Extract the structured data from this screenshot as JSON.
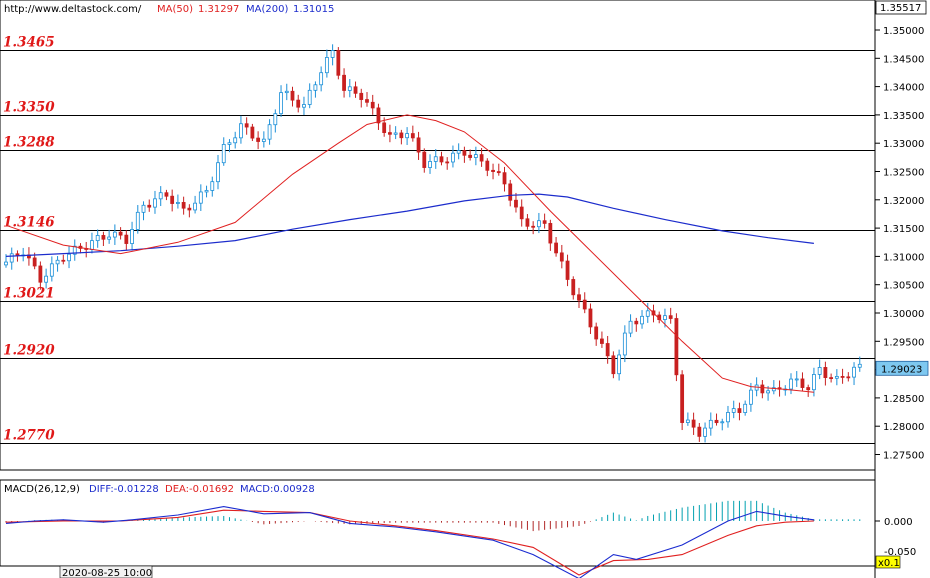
{
  "header": {
    "url": "http://www.deltastock.com/",
    "ma50_label": "MA(50)",
    "ma50_value": "1.31297",
    "ma200_label": "MA(200)",
    "ma200_value": "1.31015",
    "colors": {
      "ma50": "#e02020",
      "ma200": "#1c2ccc"
    }
  },
  "price_axis": {
    "top_value": "1.35517",
    "current_value": "1.29023",
    "ticks": [
      "1.35000",
      "1.34500",
      "1.34000",
      "1.33500",
      "1.33000",
      "1.32500",
      "1.32000",
      "1.31500",
      "1.31000",
      "1.30500",
      "1.30000",
      "1.29500",
      "1.29000",
      "1.28500",
      "1.28000",
      "1.27500"
    ]
  },
  "levels": [
    {
      "label": "1.3465",
      "value": 1.3465
    },
    {
      "label": "1.3350",
      "value": 1.335
    },
    {
      "label": "1.3288",
      "value": 1.3288
    },
    {
      "label": "1.3146",
      "value": 1.3146
    },
    {
      "label": "1.3021",
      "value": 1.3021
    },
    {
      "label": "1.2920",
      "value": 1.292
    },
    {
      "label": "1.2770",
      "value": 1.277
    }
  ],
  "macd_panel": {
    "title": "MACD(26,12,9)",
    "diff_label": "DIFF:-0.01228",
    "dea_label": "DEA:-0.01692",
    "macd_label": "MACD:0.00928",
    "ticks": [
      "0.000",
      "-0.050"
    ],
    "scale_label": "x0.1",
    "colors": {
      "diff": "#1a2bd0",
      "dea": "#e02020",
      "hist_pos": "#00a0b0",
      "hist_neg": "#b02828"
    }
  },
  "footer": {
    "date_label": "2020-08-25 10:00"
  },
  "chart_data": {
    "type": "candlestick",
    "series_count": 150,
    "price_range": [
      1.2715,
      1.3565
    ],
    "ma50_path": [
      [
        0,
        1.3155
      ],
      [
        10,
        1.312
      ],
      [
        20,
        1.3105
      ],
      [
        30,
        1.3125
      ],
      [
        40,
        1.316
      ],
      [
        50,
        1.3245
      ],
      [
        58,
        1.33
      ],
      [
        63,
        1.3333
      ],
      [
        70,
        1.335
      ],
      [
        75,
        1.334
      ],
      [
        80,
        1.332
      ],
      [
        87,
        1.3265
      ],
      [
        95,
        1.318
      ],
      [
        100,
        1.313
      ],
      [
        110,
        1.303
      ],
      [
        118,
        1.295
      ],
      [
        125,
        1.2885
      ],
      [
        130,
        1.287
      ],
      [
        136,
        1.2865
      ],
      [
        141,
        1.286
      ]
    ],
    "ma200_path": [
      [
        0,
        1.31
      ],
      [
        10,
        1.3105
      ],
      [
        20,
        1.311
      ],
      [
        30,
        1.3118
      ],
      [
        40,
        1.3128
      ],
      [
        50,
        1.3148
      ],
      [
        60,
        1.3165
      ],
      [
        70,
        1.318
      ],
      [
        80,
        1.3198
      ],
      [
        88,
        1.3208
      ],
      [
        93,
        1.321
      ],
      [
        98,
        1.3205
      ],
      [
        106,
        1.3185
      ],
      [
        115,
        1.3165
      ],
      [
        125,
        1.3145
      ],
      [
        133,
        1.3133
      ],
      [
        141,
        1.3123
      ]
    ],
    "diff_path": [
      [
        0,
        -0.02
      ],
      [
        5,
        0.0
      ],
      [
        10,
        0.01
      ],
      [
        17,
        -0.01
      ],
      [
        22,
        0.01
      ],
      [
        30,
        0.05
      ],
      [
        38,
        0.12
      ],
      [
        45,
        0.06
      ],
      [
        53,
        0.07
      ],
      [
        60,
        -0.02
      ],
      [
        68,
        -0.05
      ],
      [
        75,
        -0.09
      ],
      [
        85,
        -0.16
      ],
      [
        92,
        -0.28
      ],
      [
        100,
        -0.48
      ],
      [
        106,
        -0.28
      ],
      [
        110,
        -0.32
      ],
      [
        118,
        -0.2
      ],
      [
        126,
        0.0
      ],
      [
        131,
        0.08
      ],
      [
        136,
        0.04
      ],
      [
        141,
        0.01
      ]
    ],
    "dea_path": [
      [
        0,
        -0.01
      ],
      [
        10,
        0.0
      ],
      [
        20,
        0.0
      ],
      [
        30,
        0.03
      ],
      [
        38,
        0.09
      ],
      [
        45,
        0.08
      ],
      [
        53,
        0.07
      ],
      [
        60,
        0.0
      ],
      [
        68,
        -0.04
      ],
      [
        75,
        -0.08
      ],
      [
        85,
        -0.15
      ],
      [
        92,
        -0.22
      ],
      [
        100,
        -0.45
      ],
      [
        106,
        -0.33
      ],
      [
        112,
        -0.32
      ],
      [
        118,
        -0.28
      ],
      [
        126,
        -0.12
      ],
      [
        131,
        -0.04
      ],
      [
        136,
        -0.01
      ],
      [
        141,
        0.0
      ]
    ]
  }
}
